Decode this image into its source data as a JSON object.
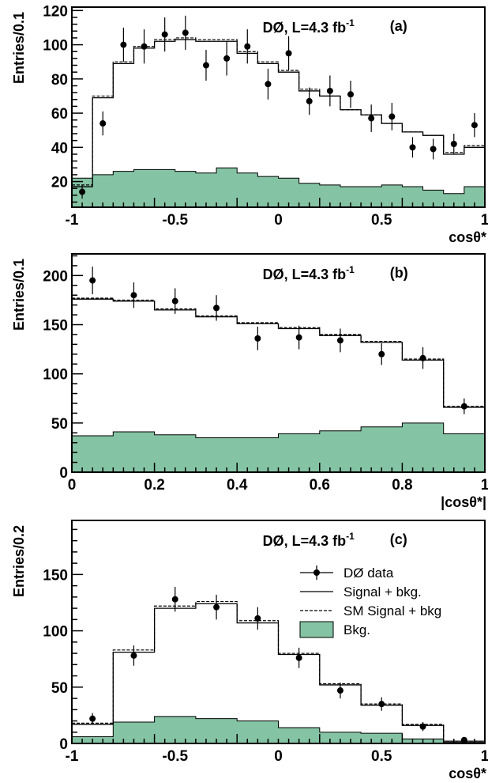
{
  "colors": {
    "background": "#ffffff",
    "background_fill": "#84c3a3",
    "background_stroke": "#000000",
    "line": "#000000"
  },
  "chart_data": [
    {
      "panel": "a",
      "type": "histogram",
      "annotation_text": "DØ, L=4.3 fb",
      "annotation_sup": "-1",
      "panel_label": "(a)",
      "xlabel": "cosθ*",
      "ylabel": "Entries/0.1",
      "xlim": [
        -1,
        1
      ],
      "ylim": [
        5,
        122
      ],
      "x_ticks": [
        -1,
        -0.5,
        0,
        0.5,
        1
      ],
      "x_tick_labels": [
        "-1",
        "-0.5",
        "0",
        "0.5",
        "1"
      ],
      "y_ticks": [
        20,
        40,
        60,
        80,
        100,
        120
      ],
      "y_tick_labels": [
        "20",
        "40",
        "60",
        "80",
        "100",
        "120"
      ],
      "bin_edges": [
        -1,
        -0.9,
        -0.8,
        -0.7,
        -0.6,
        -0.5,
        -0.4,
        -0.3,
        -0.2,
        -0.1,
        0,
        0.1,
        0.2,
        0.3,
        0.4,
        0.5,
        0.6,
        0.7,
        0.8,
        0.9,
        1
      ],
      "signal_bkg": [
        17,
        69,
        89,
        98,
        102,
        103,
        102,
        102,
        95,
        89,
        84,
        73,
        70,
        62,
        59,
        54,
        49,
        47,
        36,
        40
      ],
      "sm_signal_bkg": [
        18,
        70,
        90,
        99,
        103,
        104,
        103,
        103,
        96,
        90,
        85,
        74,
        70,
        62,
        59,
        54,
        49,
        47,
        37,
        41
      ],
      "bkg": [
        22,
        24,
        26,
        27,
        27,
        26,
        25,
        28,
        25,
        23,
        22,
        19,
        18,
        17,
        17,
        18,
        17,
        15,
        13,
        17
      ],
      "data": {
        "x": [
          -0.95,
          -0.85,
          -0.75,
          -0.65,
          -0.55,
          -0.45,
          -0.35,
          -0.25,
          -0.15,
          -0.05,
          0.05,
          0.15,
          0.25,
          0.35,
          0.45,
          0.55,
          0.65,
          0.75,
          0.85,
          0.95
        ],
        "y": [
          14,
          54,
          100,
          99,
          106,
          107,
          88,
          92,
          99,
          77,
          95,
          67,
          73,
          71,
          57,
          58,
          40,
          39,
          42,
          53
        ],
        "err": [
          4,
          7,
          10,
          10,
          10,
          10,
          9,
          10,
          10,
          9,
          10,
          8,
          9,
          8,
          8,
          8,
          6,
          6,
          6,
          7
        ]
      }
    },
    {
      "panel": "b",
      "type": "histogram",
      "annotation_text": "DØ, L=4.3 fb",
      "annotation_sup": "-1",
      "panel_label": "(b)",
      "xlabel": "|cosθ*|",
      "ylabel": "Entries/0.1",
      "xlim": [
        0,
        1
      ],
      "ylim": [
        0,
        222
      ],
      "x_ticks": [
        0,
        0.2,
        0.4,
        0.6,
        0.8,
        1
      ],
      "x_tick_labels": [
        "0",
        "0.2",
        "0.4",
        "0.6",
        "0.8",
        "1"
      ],
      "y_ticks": [
        0,
        50,
        100,
        150,
        200
      ],
      "y_tick_labels": [
        "0",
        "50",
        "100",
        "150",
        "200"
      ],
      "bin_edges": [
        0,
        0.1,
        0.2,
        0.3,
        0.4,
        0.5,
        0.6,
        0.7,
        0.8,
        0.9,
        1
      ],
      "signal_bkg": [
        176,
        174,
        165,
        158,
        151,
        146,
        139,
        132,
        114,
        66
      ],
      "sm_signal_bkg": [
        177,
        175,
        166,
        159,
        152,
        147,
        140,
        133,
        115,
        67
      ],
      "bkg": [
        37,
        41,
        38,
        35,
        35,
        39,
        42,
        46,
        50,
        39
      ],
      "data": {
        "x": [
          0.05,
          0.15,
          0.25,
          0.35,
          0.45,
          0.55,
          0.65,
          0.75,
          0.85,
          0.95
        ],
        "y": [
          195,
          180,
          174,
          167,
          136,
          137,
          134,
          120,
          116,
          67
        ],
        "err": [
          14,
          13,
          13,
          13,
          12,
          12,
          12,
          11,
          11,
          8
        ]
      }
    },
    {
      "panel": "c",
      "type": "histogram",
      "annotation_text": "DØ, L=4.3 fb",
      "annotation_sup": "-1",
      "panel_label": "(c)",
      "xlabel": "cosθ*",
      "ylabel": "Entries/0.2",
      "xlim": [
        -1,
        1
      ],
      "ylim": [
        0,
        198
      ],
      "x_ticks": [
        -1,
        -0.5,
        0,
        0.5,
        1
      ],
      "x_tick_labels": [
        "-1",
        "-0.5",
        "0",
        "0.5",
        "1"
      ],
      "y_ticks": [
        0,
        50,
        100,
        150
      ],
      "y_tick_labels": [
        "0",
        "50",
        "100",
        "150"
      ],
      "bin_edges": [
        -1,
        -0.8,
        -0.6,
        -0.4,
        -0.2,
        0,
        0.2,
        0.4,
        0.6,
        0.8,
        1
      ],
      "signal_bkg": [
        17,
        81,
        120,
        124,
        107,
        79,
        52,
        34,
        16,
        2
      ],
      "sm_signal_bkg": [
        18,
        83,
        122,
        126,
        109,
        80,
        53,
        35,
        17,
        2
      ],
      "bkg": [
        6,
        19,
        24,
        22,
        20,
        14,
        10,
        9,
        4,
        1
      ],
      "data": {
        "x": [
          -0.9,
          -0.7,
          -0.5,
          -0.3,
          -0.1,
          0.1,
          0.3,
          0.5,
          0.7,
          0.9
        ],
        "y": [
          22,
          78,
          128,
          121,
          111,
          76,
          47,
          35,
          15,
          3
        ],
        "err": [
          5,
          9,
          11,
          11,
          10,
          9,
          7,
          6,
          4,
          2
        ]
      },
      "legend": {
        "placement": "top-right",
        "entries": [
          "DØ data",
          "Signal + bkg.",
          "SM Signal + bkg",
          "Bkg."
        ]
      }
    }
  ]
}
